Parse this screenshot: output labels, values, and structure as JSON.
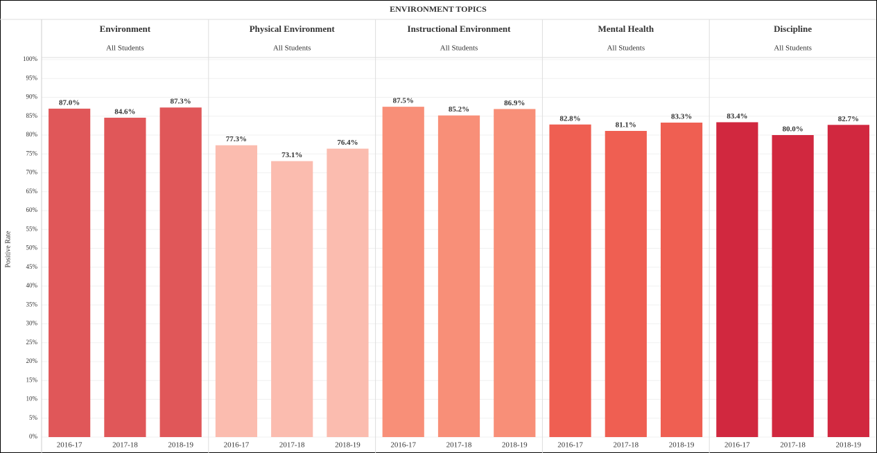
{
  "chart_data": {
    "type": "bar",
    "title": "ENVIRONMENT TOPICS",
    "y_label": "Positive Rate",
    "ylim": [
      0,
      100
    ],
    "yticks": [
      {
        "value": 0,
        "label": "0%"
      },
      {
        "value": 5,
        "label": "5%"
      },
      {
        "value": 10,
        "label": "10%"
      },
      {
        "value": 15,
        "label": "15%"
      },
      {
        "value": 20,
        "label": "20%"
      },
      {
        "value": 25,
        "label": "25%"
      },
      {
        "value": 30,
        "label": "30%"
      },
      {
        "value": 35,
        "label": "35%"
      },
      {
        "value": 40,
        "label": "40%"
      },
      {
        "value": 45,
        "label": "45%"
      },
      {
        "value": 50,
        "label": "50%"
      },
      {
        "value": 55,
        "label": "55%"
      },
      {
        "value": 60,
        "label": "60%"
      },
      {
        "value": 65,
        "label": "65%"
      },
      {
        "value": 70,
        "label": "70%"
      },
      {
        "value": 75,
        "label": "75%"
      },
      {
        "value": 80,
        "label": "80%"
      },
      {
        "value": 85,
        "label": "85%"
      },
      {
        "value": 90,
        "label": "90%"
      },
      {
        "value": 95,
        "label": "95%"
      },
      {
        "value": 100,
        "label": "100%"
      }
    ],
    "grid": true,
    "panels": [
      {
        "title": "Environment",
        "subtitle": "All Students",
        "color": "#e05759",
        "categories": [
          "2016-17",
          "2017-18",
          "2018-19"
        ],
        "values": [
          87.0,
          84.6,
          87.3
        ],
        "value_labels": [
          "87.0%",
          "84.6%",
          "87.3%"
        ]
      },
      {
        "title": "Physical Environment",
        "subtitle": "All Students",
        "color": "#fbbcaf",
        "categories": [
          "2016-17",
          "2017-18",
          "2018-19"
        ],
        "values": [
          77.3,
          73.1,
          76.4
        ],
        "value_labels": [
          "77.3%",
          "73.1%",
          "76.4%"
        ]
      },
      {
        "title": "Instructional Environment",
        "subtitle": "All Students",
        "color": "#f88f78",
        "categories": [
          "2016-17",
          "2017-18",
          "2018-19"
        ],
        "values": [
          87.5,
          85.2,
          86.9
        ],
        "value_labels": [
          "87.5%",
          "85.2%",
          "86.9%"
        ]
      },
      {
        "title": "Mental Health",
        "subtitle": "All Students",
        "color": "#ef5f52",
        "categories": [
          "2016-17",
          "2017-18",
          "2018-19"
        ],
        "values": [
          82.8,
          81.1,
          83.3
        ],
        "value_labels": [
          "82.8%",
          "81.1%",
          "83.3%"
        ]
      },
      {
        "title": "Discipline",
        "subtitle": "All Students",
        "color": "#d1283f",
        "categories": [
          "2016-17",
          "2017-18",
          "2018-19"
        ],
        "values": [
          83.4,
          80.0,
          82.7
        ],
        "value_labels": [
          "83.4%",
          "80.0%",
          "82.7%"
        ]
      }
    ]
  }
}
